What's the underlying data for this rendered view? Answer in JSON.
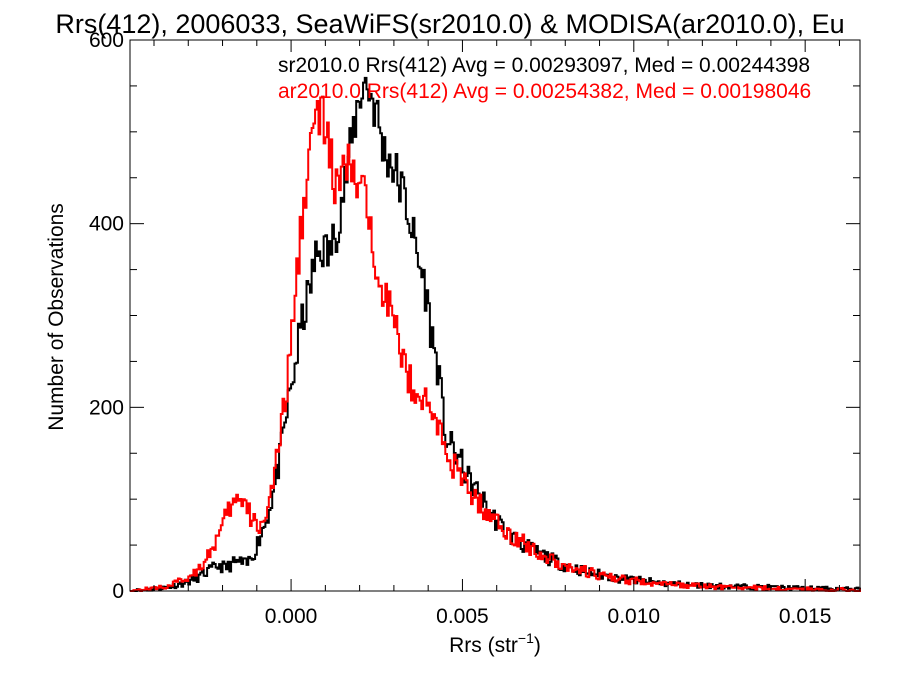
{
  "chart_data": {
    "type": "histogram",
    "title": "Rrs(412), 2006033, SeaWiFS(sr2010.0) & MODISA(ar2010.0), Eu",
    "xlabel": "Rrs (str",
    "xlabel_sup": "−1",
    "xlabel_end": ")",
    "ylabel": "Number of Observations",
    "xlim": [
      -0.0047,
      0.0166
    ],
    "ylim": [
      0,
      600
    ],
    "xticks": [
      {
        "value": 0.0,
        "label": "0.000"
      },
      {
        "value": 0.005,
        "label": "0.005"
      },
      {
        "value": 0.01,
        "label": "0.010"
      },
      {
        "value": 0.015,
        "label": "0.015"
      }
    ],
    "yticks": [
      {
        "value": 0,
        "label": "0"
      },
      {
        "value": 200,
        "label": "200"
      },
      {
        "value": 400,
        "label": "400"
      },
      {
        "value": 600,
        "label": "600"
      }
    ],
    "legend_placement": "top",
    "series": [
      {
        "name": "sr2010.0",
        "legend": "sr2010.0 Rrs(412) Avg = 0.00293097, Med = 0.00244398",
        "color": "#000000",
        "points": [
          [
            -0.0047,
            0
          ],
          [
            -0.004,
            2
          ],
          [
            -0.0035,
            5
          ],
          [
            -0.003,
            10
          ],
          [
            -0.0027,
            15
          ],
          [
            -0.0024,
            22
          ],
          [
            -0.0021,
            28
          ],
          [
            -0.0019,
            25
          ],
          [
            -0.0017,
            30
          ],
          [
            -0.0015,
            32
          ],
          [
            -0.0013,
            28
          ],
          [
            -0.0011,
            40
          ],
          [
            -0.0009,
            60
          ],
          [
            -0.0007,
            80
          ],
          [
            -0.0005,
            110
          ],
          [
            -0.0003,
            150
          ],
          [
            -0.0001,
            200
          ],
          [
            0.0001,
            240
          ],
          [
            0.0003,
            290
          ],
          [
            0.0005,
            320
          ],
          [
            0.0007,
            360
          ],
          [
            0.0009,
            375
          ],
          [
            0.0011,
            365
          ],
          [
            0.0013,
            390
          ],
          [
            0.0015,
            430
          ],
          [
            0.0017,
            470
          ],
          [
            0.0019,
            520
          ],
          [
            0.0021,
            555
          ],
          [
            0.0023,
            545
          ],
          [
            0.0025,
            520
          ],
          [
            0.0027,
            480
          ],
          [
            0.0029,
            470
          ],
          [
            0.0031,
            450
          ],
          [
            0.0033,
            430
          ],
          [
            0.0035,
            400
          ],
          [
            0.0037,
            360
          ],
          [
            0.0039,
            335
          ],
          [
            0.0041,
            280
          ],
          [
            0.0043,
            240
          ],
          [
            0.0045,
            170
          ],
          [
            0.0047,
            155
          ],
          [
            0.0049,
            145
          ],
          [
            0.0052,
            120
          ],
          [
            0.0055,
            105
          ],
          [
            0.0058,
            85
          ],
          [
            0.0061,
            72
          ],
          [
            0.0064,
            60
          ],
          [
            0.0067,
            52
          ],
          [
            0.007,
            45
          ],
          [
            0.0073,
            40
          ],
          [
            0.0076,
            34
          ],
          [
            0.008,
            28
          ],
          [
            0.0085,
            22
          ],
          [
            0.009,
            18
          ],
          [
            0.0095,
            14
          ],
          [
            0.01,
            12
          ],
          [
            0.0105,
            10
          ],
          [
            0.011,
            8
          ],
          [
            0.0115,
            7
          ],
          [
            0.012,
            6
          ],
          [
            0.013,
            5
          ],
          [
            0.014,
            4
          ],
          [
            0.015,
            3
          ],
          [
            0.0166,
            2
          ]
        ]
      },
      {
        "name": "ar2010.0",
        "legend": "ar2010.0 Rrs(412) Avg = 0.00254382, Med = 0.00198046",
        "color": "#ff0000",
        "points": [
          [
            -0.0047,
            0
          ],
          [
            -0.004,
            3
          ],
          [
            -0.0035,
            6
          ],
          [
            -0.003,
            15
          ],
          [
            -0.0027,
            25
          ],
          [
            -0.0024,
            40
          ],
          [
            -0.0021,
            60
          ],
          [
            -0.0019,
            80
          ],
          [
            -0.0017,
            95
          ],
          [
            -0.0015,
            100
          ],
          [
            -0.0013,
            90
          ],
          [
            -0.0011,
            75
          ],
          [
            -0.0009,
            70
          ],
          [
            -0.0007,
            90
          ],
          [
            -0.0005,
            120
          ],
          [
            -0.0003,
            170
          ],
          [
            -0.0001,
            230
          ],
          [
            0.0001,
            310
          ],
          [
            0.0003,
            400
          ],
          [
            0.0005,
            470
          ],
          [
            0.0007,
            510
          ],
          [
            0.0009,
            520
          ],
          [
            0.0011,
            480
          ],
          [
            0.0013,
            440
          ],
          [
            0.0015,
            450
          ],
          [
            0.0017,
            465
          ],
          [
            0.0019,
            445
          ],
          [
            0.0021,
            430
          ],
          [
            0.0023,
            400
          ],
          [
            0.0025,
            360
          ],
          [
            0.0027,
            330
          ],
          [
            0.0029,
            310
          ],
          [
            0.0031,
            275
          ],
          [
            0.0033,
            250
          ],
          [
            0.0035,
            225
          ],
          [
            0.0037,
            220
          ],
          [
            0.0039,
            205
          ],
          [
            0.0041,
            195
          ],
          [
            0.0043,
            180
          ],
          [
            0.0045,
            155
          ],
          [
            0.0047,
            140
          ],
          [
            0.0049,
            125
          ],
          [
            0.0052,
            110
          ],
          [
            0.0055,
            95
          ],
          [
            0.0058,
            82
          ],
          [
            0.0061,
            72
          ],
          [
            0.0064,
            62
          ],
          [
            0.0067,
            54
          ],
          [
            0.007,
            47
          ],
          [
            0.0073,
            40
          ],
          [
            0.0076,
            34
          ],
          [
            0.008,
            28
          ],
          [
            0.0085,
            22
          ],
          [
            0.009,
            17
          ],
          [
            0.0095,
            13
          ],
          [
            0.01,
            11
          ],
          [
            0.0105,
            9
          ],
          [
            0.011,
            7
          ],
          [
            0.0115,
            6
          ],
          [
            0.012,
            5
          ],
          [
            0.013,
            4
          ],
          [
            0.014,
            3
          ],
          [
            0.015,
            2
          ],
          [
            0.0166,
            1
          ]
        ]
      }
    ]
  }
}
